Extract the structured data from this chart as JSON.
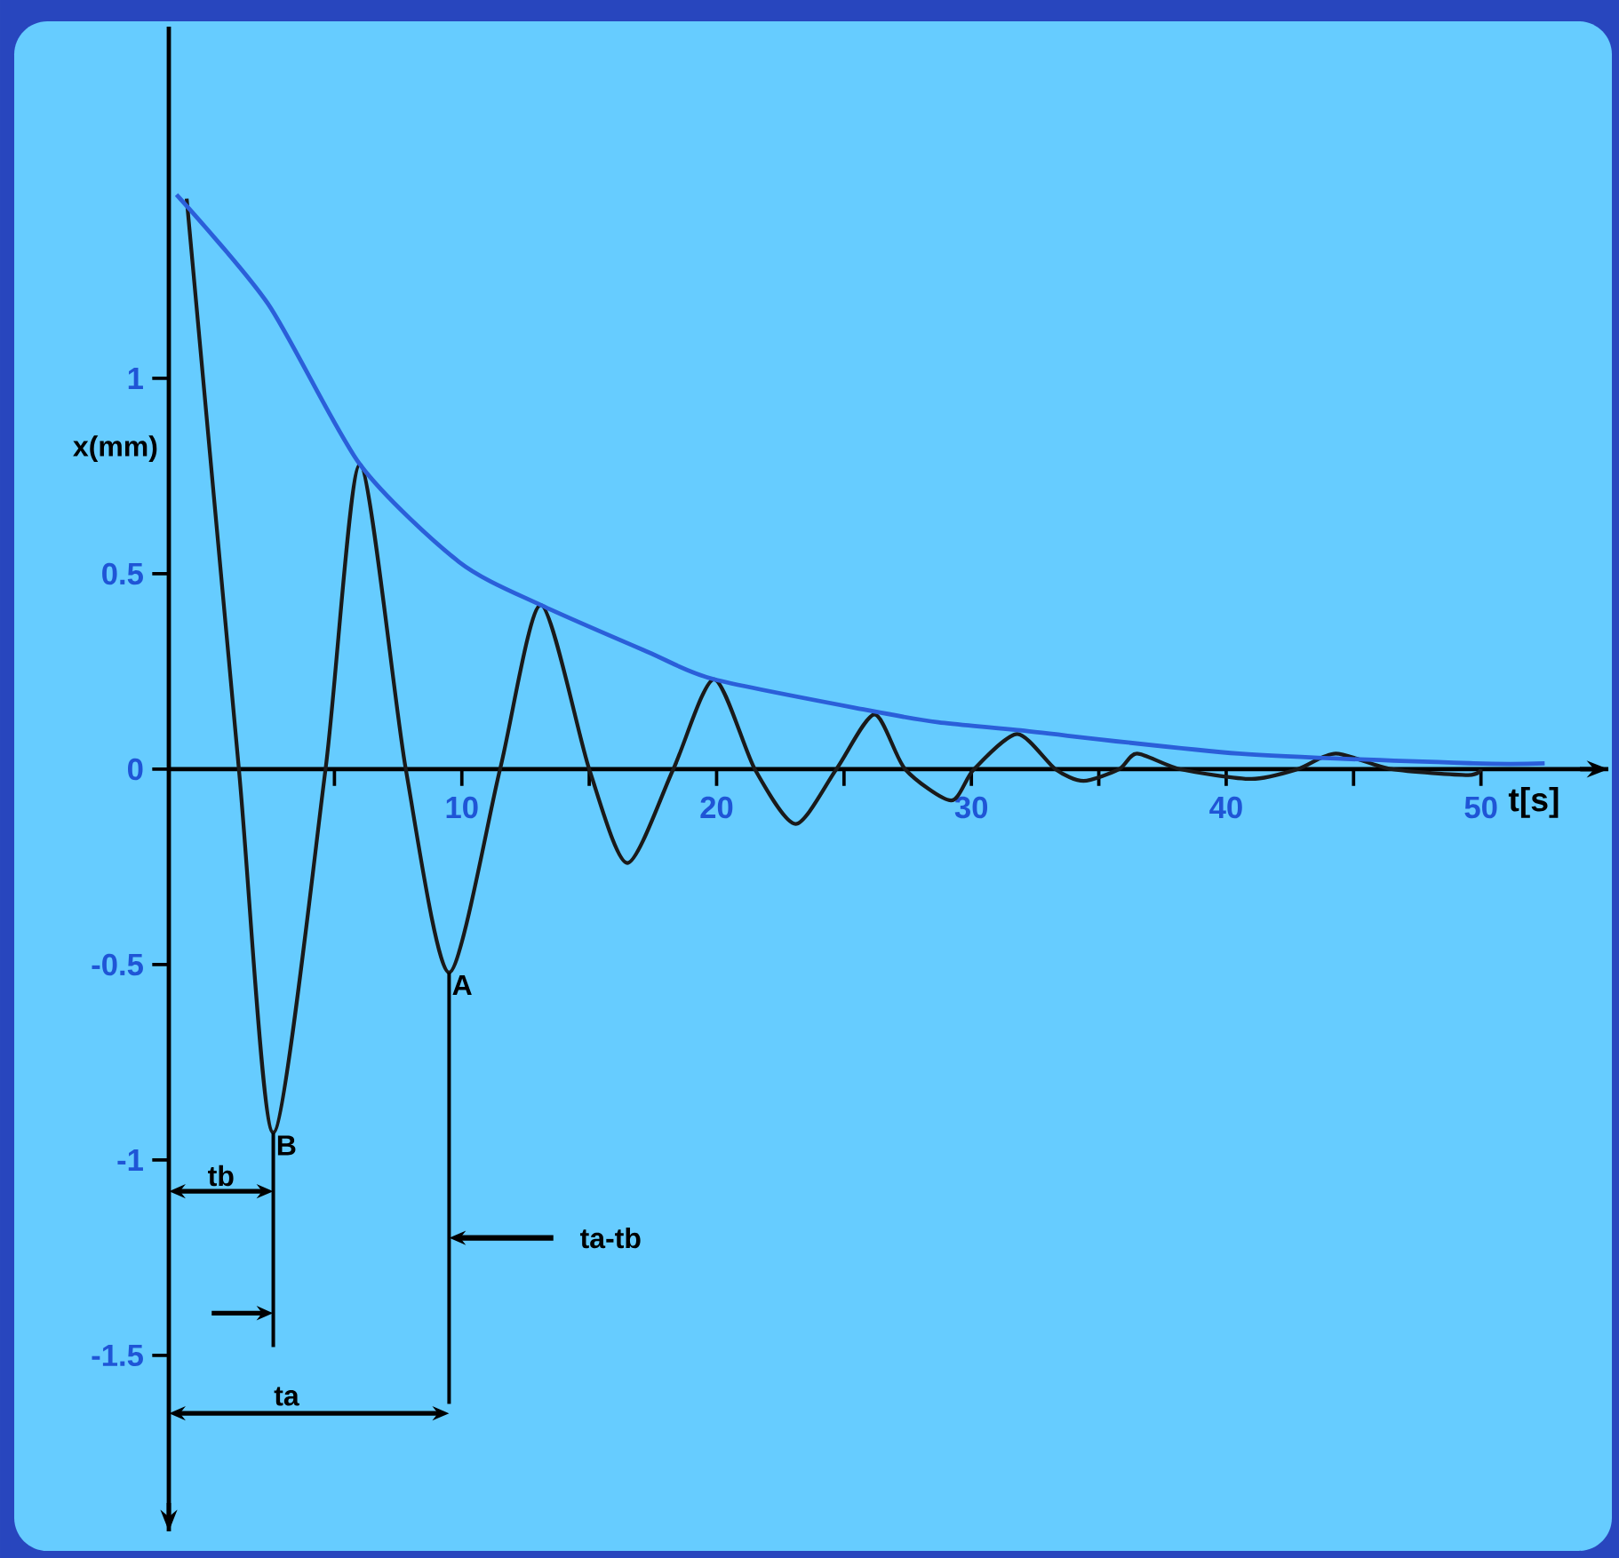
{
  "chart_data": {
    "type": "line",
    "xlabel": "t[s]",
    "ylabel": "x(mm)",
    "xlim": [
      -1.5,
      55
    ],
    "ylim": [
      -1.95,
      1.9
    ],
    "xticks": [
      {
        "value": 5,
        "label": null
      },
      10,
      {
        "value": 15,
        "label": null
      },
      20,
      {
        "value": 25,
        "label": null
      },
      30,
      {
        "value": 35,
        "label": null
      },
      40,
      {
        "value": 45,
        "label": null
      },
      50
    ],
    "yticks": [
      -1.5,
      -1,
      -0.5,
      0,
      0.5,
      1
    ],
    "series": [
      {
        "color": "#1a1a1a",
        "x": [
          -0.8,
          1.25,
          2.6,
          4.65,
          6.0,
          7.8,
          9.5,
          11.5,
          13.1,
          15.0,
          16.5,
          18.3,
          19.9,
          21.5,
          23.1,
          24.7,
          26.2,
          27.4,
          29.2,
          30.1,
          31.8,
          33.3,
          34.4,
          35.8,
          36.5,
          38.2,
          41.0,
          42.8,
          44.3,
          46.5,
          49.5,
          50.0
        ],
        "values": [
          1.46,
          0,
          -0.93,
          0,
          0.78,
          0,
          -0.52,
          0,
          0.42,
          0,
          -0.24,
          0,
          0.23,
          0,
          -0.14,
          0,
          0.14,
          0,
          -0.08,
          0,
          0.09,
          0,
          -0.03,
          0,
          0.04,
          0,
          -0.025,
          0,
          0.04,
          0,
          -0.015,
          0
        ]
      },
      {
        "color": "#2b5fd9",
        "x": [
          -1.2,
          2.4,
          6.0,
          9.9,
          13.1,
          17.3,
          19.9,
          26.0,
          28.7,
          31.8,
          40.5,
          49.7,
          52.5
        ],
        "values": [
          1.47,
          1.19,
          0.78,
          0.53,
          0.42,
          0.3,
          0.23,
          0.15,
          0.12,
          0.1,
          0.04,
          0.015,
          0.015
        ]
      }
    ],
    "annotations": [
      {
        "text": "B",
        "x": 2.6,
        "y": -0.93
      },
      {
        "text": "A",
        "x": 9.5,
        "y": -0.52
      },
      "tb",
      "ta",
      "ta-tb"
    ],
    "grid": false,
    "marker": "none",
    "line_style": "solid"
  }
}
